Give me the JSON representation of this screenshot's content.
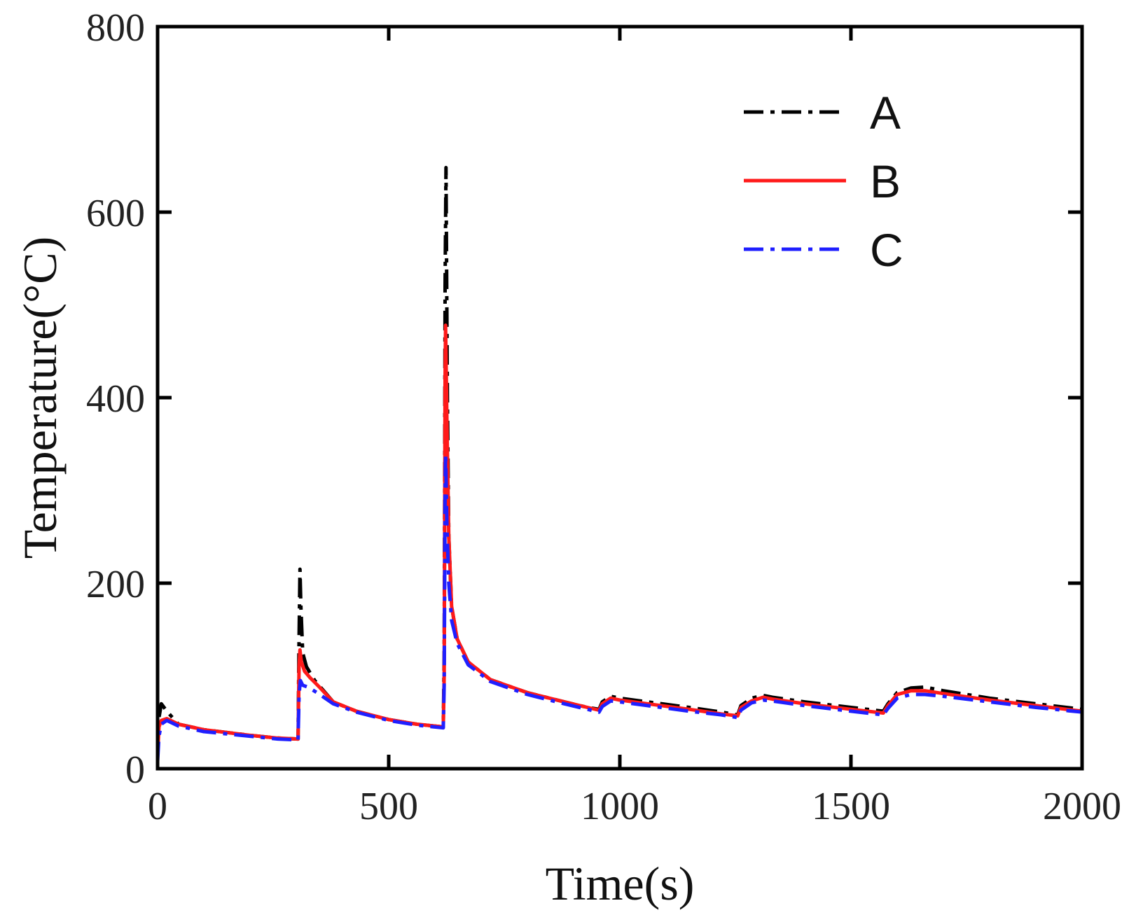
{
  "chart_data": {
    "type": "line",
    "title": "",
    "xlabel": "Time(s)",
    "ylabel": "Temperature(°C)",
    "xlim": [
      0,
      2000
    ],
    "ylim": [
      0,
      800
    ],
    "xticks": [
      0,
      500,
      1000,
      1500,
      2000
    ],
    "yticks": [
      0,
      200,
      400,
      600,
      800
    ],
    "grid": false,
    "legend_position": "top-right",
    "series": [
      {
        "name": "A",
        "color": "#000000",
        "style": "dash-dot",
        "points": [
          [
            0,
            15
          ],
          [
            3,
            55
          ],
          [
            8,
            70
          ],
          [
            20,
            62
          ],
          [
            45,
            48
          ],
          [
            100,
            42
          ],
          [
            200,
            36
          ],
          [
            260,
            33
          ],
          [
            304,
            32
          ],
          [
            306,
            140
          ],
          [
            308,
            215
          ],
          [
            310,
            175
          ],
          [
            314,
            125
          ],
          [
            322,
            110
          ],
          [
            340,
            95
          ],
          [
            380,
            72
          ],
          [
            430,
            62
          ],
          [
            500,
            53
          ],
          [
            560,
            48
          ],
          [
            618,
            45
          ],
          [
            620,
            120
          ],
          [
            621,
            300
          ],
          [
            622,
            520
          ],
          [
            624,
            648
          ],
          [
            627,
            400
          ],
          [
            630,
            250
          ],
          [
            636,
            175
          ],
          [
            648,
            140
          ],
          [
            672,
            115
          ],
          [
            720,
            96
          ],
          [
            800,
            82
          ],
          [
            880,
            72
          ],
          [
            930,
            66
          ],
          [
            955,
            64
          ],
          [
            962,
            72
          ],
          [
            980,
            78
          ],
          [
            1000,
            76
          ],
          [
            1060,
            72
          ],
          [
            1150,
            66
          ],
          [
            1220,
            61
          ],
          [
            1255,
            58
          ],
          [
            1262,
            68
          ],
          [
            1285,
            76
          ],
          [
            1310,
            79
          ],
          [
            1330,
            77
          ],
          [
            1400,
            72
          ],
          [
            1500,
            66
          ],
          [
            1570,
            62
          ],
          [
            1580,
            70
          ],
          [
            1600,
            82
          ],
          [
            1630,
            87
          ],
          [
            1660,
            88
          ],
          [
            1700,
            84
          ],
          [
            1800,
            76
          ],
          [
            1900,
            70
          ],
          [
            2000,
            64
          ]
        ]
      },
      {
        "name": "B",
        "color": "#ff1a1a",
        "style": "solid",
        "points": [
          [
            0,
            15
          ],
          [
            3,
            45
          ],
          [
            8,
            52
          ],
          [
            20,
            54
          ],
          [
            45,
            48
          ],
          [
            100,
            42
          ],
          [
            200,
            36
          ],
          [
            260,
            33
          ],
          [
            304,
            32
          ],
          [
            306,
            110
          ],
          [
            308,
            128
          ],
          [
            311,
            115
          ],
          [
            318,
            105
          ],
          [
            330,
            98
          ],
          [
            350,
            88
          ],
          [
            380,
            72
          ],
          [
            430,
            62
          ],
          [
            500,
            53
          ],
          [
            560,
            48
          ],
          [
            618,
            45
          ],
          [
            620,
            100
          ],
          [
            621,
            260
          ],
          [
            622,
            420
          ],
          [
            623,
            478
          ],
          [
            626,
            370
          ],
          [
            630,
            250
          ],
          [
            636,
            175
          ],
          [
            648,
            140
          ],
          [
            672,
            115
          ],
          [
            720,
            96
          ],
          [
            800,
            82
          ],
          [
            880,
            72
          ],
          [
            930,
            66
          ],
          [
            955,
            63
          ],
          [
            962,
            70
          ],
          [
            980,
            76
          ],
          [
            1000,
            74
          ],
          [
            1060,
            70
          ],
          [
            1150,
            64
          ],
          [
            1220,
            59
          ],
          [
            1255,
            57
          ],
          [
            1262,
            66
          ],
          [
            1285,
            73
          ],
          [
            1310,
            77
          ],
          [
            1330,
            75
          ],
          [
            1400,
            70
          ],
          [
            1500,
            64
          ],
          [
            1570,
            60
          ],
          [
            1580,
            68
          ],
          [
            1600,
            80
          ],
          [
            1630,
            84
          ],
          [
            1660,
            84
          ],
          [
            1700,
            81
          ],
          [
            1800,
            74
          ],
          [
            1900,
            68
          ],
          [
            2000,
            62
          ]
        ]
      },
      {
        "name": "C",
        "color": "#1f1fff",
        "style": "dash-dot",
        "points": [
          [
            0,
            8
          ],
          [
            3,
            35
          ],
          [
            8,
            48
          ],
          [
            20,
            52
          ],
          [
            45,
            46
          ],
          [
            100,
            40
          ],
          [
            200,
            35
          ],
          [
            260,
            32
          ],
          [
            304,
            31
          ],
          [
            306,
            80
          ],
          [
            309,
            95
          ],
          [
            314,
            90
          ],
          [
            325,
            88
          ],
          [
            345,
            82
          ],
          [
            380,
            70
          ],
          [
            430,
            61
          ],
          [
            500,
            52
          ],
          [
            560,
            47
          ],
          [
            618,
            44
          ],
          [
            620,
            90
          ],
          [
            621,
            200
          ],
          [
            622,
            300
          ],
          [
            623,
            340
          ],
          [
            626,
            260
          ],
          [
            630,
            200
          ],
          [
            636,
            160
          ],
          [
            648,
            135
          ],
          [
            672,
            112
          ],
          [
            720,
            94
          ],
          [
            800,
            80
          ],
          [
            880,
            70
          ],
          [
            930,
            64
          ],
          [
            955,
            61
          ],
          [
            962,
            67
          ],
          [
            980,
            73
          ],
          [
            1000,
            72
          ],
          [
            1060,
            68
          ],
          [
            1150,
            62
          ],
          [
            1220,
            58
          ],
          [
            1255,
            55
          ],
          [
            1262,
            63
          ],
          [
            1285,
            71
          ],
          [
            1310,
            74
          ],
          [
            1330,
            73
          ],
          [
            1400,
            68
          ],
          [
            1500,
            62
          ],
          [
            1570,
            58
          ],
          [
            1580,
            65
          ],
          [
            1600,
            76
          ],
          [
            1630,
            80
          ],
          [
            1660,
            80
          ],
          [
            1700,
            78
          ],
          [
            1800,
            72
          ],
          [
            1900,
            66
          ],
          [
            2000,
            61
          ]
        ]
      }
    ]
  }
}
